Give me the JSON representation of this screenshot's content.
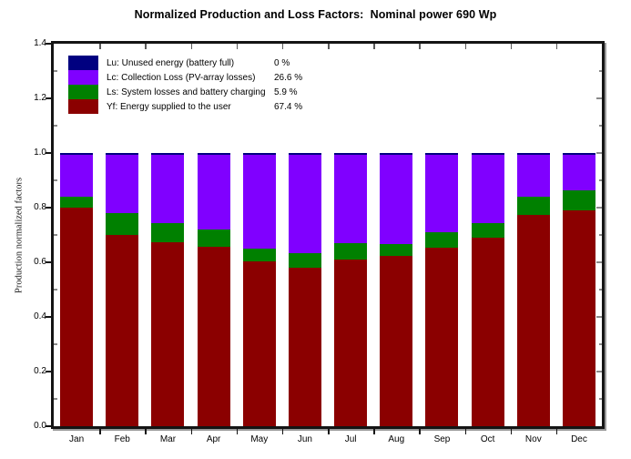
{
  "title": "Normalized Production and Loss Factors:  Nominal power 690 Wp",
  "y_axis": {
    "label": "Production normalized factors",
    "ticks": [
      "0.0",
      "0.2",
      "0.4",
      "0.6",
      "0.8",
      "1.0",
      "1.2",
      "1.4"
    ],
    "min": 0.0,
    "max": 1.4
  },
  "x_axis": {
    "months": [
      "Jan",
      "Feb",
      "Mar",
      "Apr",
      "May",
      "Jun",
      "Jul",
      "Aug",
      "Sep",
      "Oct",
      "Nov",
      "Dec"
    ]
  },
  "legend": [
    {
      "id": "lu",
      "label": "Lu: Unused energy (battery full)",
      "value": "0 %",
      "color": "#000080"
    },
    {
      "id": "lc",
      "label": "Lc: Collection Loss (PV-array losses)",
      "value": "26.6 %",
      "color": "#8000FF"
    },
    {
      "id": "ls",
      "label": "Ls: System losses and battery charging",
      "value": "5.9 %",
      "color": "#008000"
    },
    {
      "id": "yf",
      "label": "Yf: Energy supplied to the user",
      "value": "67.4 %",
      "color": "#8B0000"
    }
  ],
  "chart_data": {
    "type": "bar",
    "stacked": true,
    "title": "Normalized Production and Loss Factors:  Nominal power 690 Wp",
    "xlabel": "",
    "ylabel": "Production normalized factors",
    "ylim": [
      0,
      1.4
    ],
    "grid": false,
    "legend_position": "top-left-inside",
    "bar_total": 1.0,
    "categories": [
      "Jan",
      "Feb",
      "Mar",
      "Apr",
      "May",
      "Jun",
      "Jul",
      "Aug",
      "Sep",
      "Oct",
      "Nov",
      "Dec"
    ],
    "series": [
      {
        "name": "Yf: Energy supplied to the user",
        "color": "#8B0000",
        "values": [
          0.8,
          0.7,
          0.675,
          0.658,
          0.605,
          0.58,
          0.61,
          0.622,
          0.655,
          0.69,
          0.775,
          0.79
        ]
      },
      {
        "name": "Ls: System losses and battery charging",
        "color": "#008000",
        "values": [
          0.04,
          0.08,
          0.07,
          0.062,
          0.045,
          0.055,
          0.06,
          0.045,
          0.055,
          0.055,
          0.065,
          0.075
        ]
      },
      {
        "name": "Lc: Collection Loss (PV-array losses)",
        "color": "#8000FF",
        "values": [
          0.155,
          0.215,
          0.25,
          0.275,
          0.345,
          0.36,
          0.325,
          0.328,
          0.285,
          0.25,
          0.155,
          0.13
        ]
      },
      {
        "name": "Lu: Unused energy (battery full)",
        "color": "#000080",
        "values": [
          0.005,
          0.005,
          0.005,
          0.005,
          0.005,
          0.005,
          0.005,
          0.005,
          0.005,
          0.005,
          0.005,
          0.005
        ]
      }
    ],
    "annual_fractions": {
      "Lu": "0 %",
      "Lc": "26.6 %",
      "Ls": "5.9 %",
      "Yf": "67.4 %"
    }
  }
}
